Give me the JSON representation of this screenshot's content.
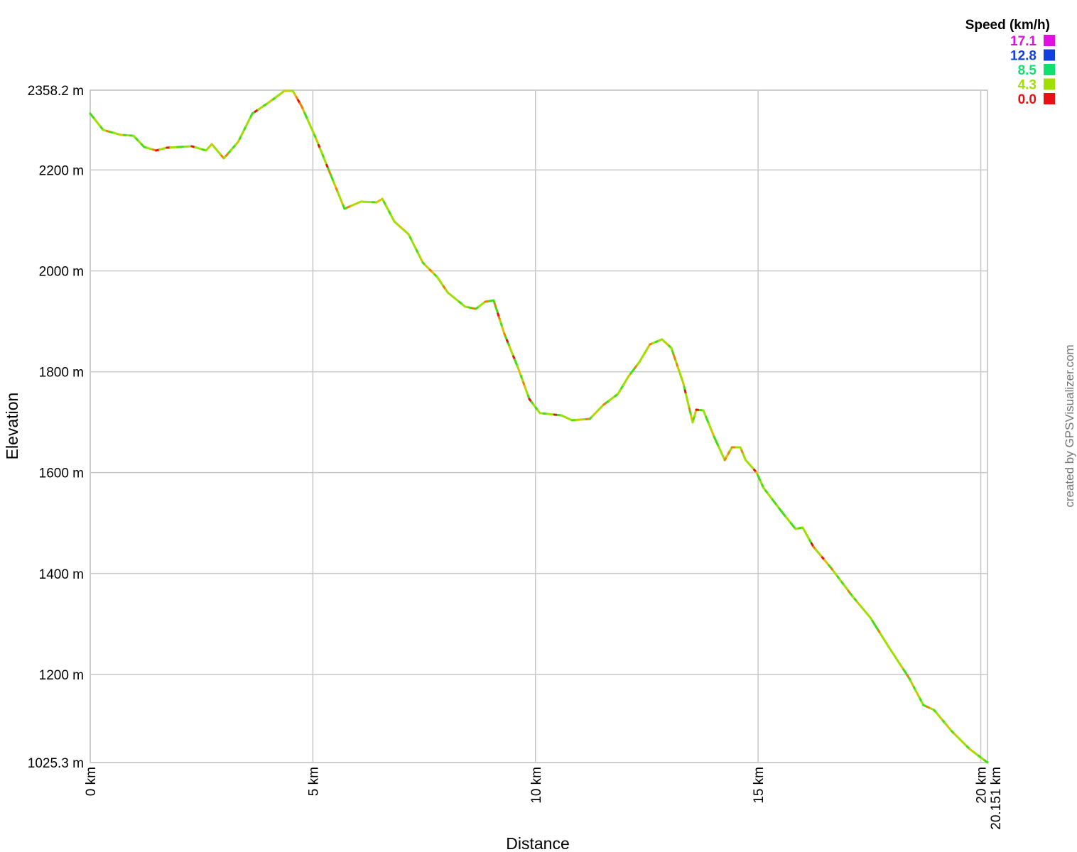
{
  "chart_data": {
    "type": "line",
    "xlabel": "Distance",
    "ylabel": "Elevation",
    "xlim": [
      0,
      20.151
    ],
    "ylim": [
      1025.3,
      2358.2
    ],
    "grid": true,
    "x_ticks": [
      {
        "value": 0,
        "label": "0 km"
      },
      {
        "value": 5,
        "label": "5 km"
      },
      {
        "value": 10,
        "label": "10 km"
      },
      {
        "value": 15,
        "label": "15 km"
      },
      {
        "value": 20,
        "label": "20 km"
      },
      {
        "value": 20.151,
        "label": "20.151 km"
      }
    ],
    "y_ticks": [
      {
        "value": 2358.2,
        "label": "2358.2 m"
      },
      {
        "value": 2200,
        "label": "2200 m"
      },
      {
        "value": 2000,
        "label": "2000 m"
      },
      {
        "value": 1800,
        "label": "1800 m"
      },
      {
        "value": 1600,
        "label": "1600 m"
      },
      {
        "value": 1400,
        "label": "1400 m"
      },
      {
        "value": 1200,
        "label": "1200 m"
      },
      {
        "value": 1025.3,
        "label": "1025.3 m"
      }
    ],
    "series": [
      {
        "x": [
          0,
          0.29,
          0.69,
          0.97,
          1.21,
          1.48,
          1.72,
          2.28,
          2.6,
          2.73,
          3.0,
          3.32,
          3.64,
          4.04,
          4.36,
          4.55,
          4.75,
          5.07,
          5.34,
          5.71,
          6.08,
          6.43,
          6.56,
          6.83,
          7.15,
          7.47,
          7.79,
          8.03,
          8.42,
          8.66,
          8.87,
          9.06,
          9.3,
          9.62,
          9.86,
          10.1,
          10.58,
          10.82,
          11.22,
          11.53,
          11.85,
          12.09,
          12.33,
          12.57,
          12.84,
          13.05,
          13.32,
          13.53,
          13.61,
          13.77,
          14.01,
          14.25,
          14.41,
          14.6,
          14.72,
          14.96,
          15.12,
          15.52,
          15.84,
          16.0,
          16.24,
          16.64,
          17.12,
          17.52,
          17.92,
          18.39,
          18.71,
          18.95,
          19.35,
          19.75,
          20.151
        ],
        "y": [
          2311.8,
          2279.4,
          2269.5,
          2268,
          2245.6,
          2238.6,
          2244.2,
          2247,
          2238.6,
          2251.2,
          2223,
          2255.5,
          2311.8,
          2335.7,
          2356.8,
          2356.8,
          2325.8,
          2262.5,
          2203.4,
          2123.2,
          2137.2,
          2135.8,
          2142.9,
          2097.8,
          2072.5,
          2016.2,
          1988,
          1957,
          1929,
          1924.7,
          1938.8,
          1941.6,
          1875.4,
          1805,
          1746,
          1718,
          1713.6,
          1703.8,
          1706.6,
          1734.7,
          1755.8,
          1791,
          1819,
          1854.3,
          1864.2,
          1847.3,
          1777,
          1699.5,
          1724.8,
          1723.4,
          1671.3,
          1624.9,
          1650.2,
          1650.2,
          1624.9,
          1601,
          1570,
          1523.6,
          1488.4,
          1491.2,
          1453.2,
          1410.9,
          1354.7,
          1312.5,
          1256.2,
          1192.8,
          1139.3,
          1129.5,
          1087.3,
          1052.1,
          1025.3
        ]
      }
    ],
    "legend": {
      "title": "Speed (km/h)",
      "position": "top-right",
      "items": [
        {
          "label": "17.1",
          "color": "#e010e0"
        },
        {
          "label": "12.8",
          "color": "#1040e0"
        },
        {
          "label": "8.5",
          "color": "#10e070"
        },
        {
          "label": "4.3",
          "color": "#a0e000"
        },
        {
          "label": "0.0",
          "color": "#e81010"
        }
      ]
    },
    "line_colors": [
      "#a0e000",
      "#40e010",
      "#e0c000",
      "#e81010",
      "#f08000"
    ]
  },
  "credit": "created by GPSVisualizer.com"
}
